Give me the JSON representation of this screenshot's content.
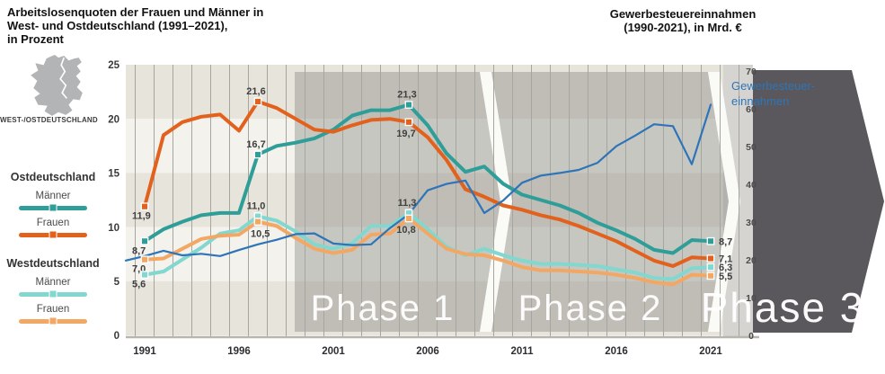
{
  "header": {
    "left_title": "Arbeitslosenquoten der Frauen und Männer in\nWest- und Ostdeutschland (1991–2021),\nin Prozent",
    "right_title": "Gewerbesteuereinnahmen\n(1990-2021), in Mrd. €"
  },
  "sidebar": {
    "map_caption": "WEST-/OSTDEUTSCHLAND",
    "groups": [
      {
        "heading": "Ostdeutschland",
        "items": [
          {
            "label": "Männer",
            "color": "#2f9e99"
          },
          {
            "label": "Frauen",
            "color": "#e2611c"
          }
        ]
      },
      {
        "heading": "Westdeutschland",
        "items": [
          {
            "label": "Männer",
            "color": "#82d7cf"
          },
          {
            "label": "Frauen",
            "color": "#f3a765"
          }
        ]
      }
    ]
  },
  "chart_data": {
    "type": "line",
    "title": "Arbeitslosenquoten der Frauen und Männer in West- und Ostdeutschland (1991–2021), in Prozent / Gewerbesteuereinnahmen (1990-2021), in Mrd. €",
    "years": [
      1991,
      1992,
      1993,
      1994,
      1995,
      1996,
      1997,
      1998,
      1999,
      2000,
      2001,
      2002,
      2003,
      2004,
      2005,
      2006,
      2007,
      2008,
      2009,
      2010,
      2011,
      2012,
      2013,
      2014,
      2015,
      2016,
      2017,
      2018,
      2019,
      2020,
      2021
    ],
    "x_ticks": [
      1991,
      1996,
      2001,
      2006,
      2011,
      2016,
      2021
    ],
    "left_axis": {
      "label": "in Prozent",
      "ticks": [
        0,
        5,
        10,
        15,
        20,
        25
      ],
      "range": [
        0,
        25
      ]
    },
    "right_axis": {
      "label": "in Mrd. €",
      "ticks": [
        0,
        10,
        20,
        30,
        40,
        50,
        60,
        70
      ],
      "range": [
        0,
        70
      ]
    },
    "grid": "vertical-yearly",
    "legend_position": "left",
    "series": [
      {
        "key": "ost_maenner",
        "name": "Ostdeutschland Männer",
        "color": "#2f9e99",
        "axis": "left",
        "year_start": 1991,
        "values": [
          8.7,
          9.8,
          10.5,
          11.1,
          11.3,
          11.3,
          16.7,
          17.5,
          17.8,
          18.2,
          19.0,
          20.3,
          20.8,
          20.8,
          21.3,
          19.4,
          16.8,
          15.1,
          15.6,
          14.0,
          13.0,
          12.5,
          12.0,
          11.3,
          10.4,
          9.7,
          8.9,
          7.9,
          7.6,
          8.8,
          8.7
        ]
      },
      {
        "key": "ost_frauen",
        "name": "Ostdeutschland Frauen",
        "color": "#e2611c",
        "axis": "left",
        "year_start": 1991,
        "values": [
          11.9,
          18.5,
          19.7,
          20.2,
          20.4,
          18.9,
          21.6,
          21.0,
          20.0,
          19.0,
          18.8,
          19.4,
          19.9,
          20.0,
          19.7,
          18.3,
          16.2,
          13.5,
          12.8,
          12.0,
          11.6,
          11.1,
          10.7,
          10.1,
          9.4,
          8.7,
          7.8,
          6.9,
          6.4,
          7.2,
          7.1
        ]
      },
      {
        "key": "west_maenner",
        "name": "Westdeutschland Männer",
        "color": "#82d7cf",
        "axis": "left",
        "year_start": 1991,
        "values": [
          5.6,
          5.9,
          7.0,
          8.1,
          9.4,
          9.7,
          11.0,
          10.6,
          9.6,
          8.4,
          8.0,
          8.5,
          10.1,
          10.1,
          11.3,
          9.8,
          8.2,
          7.4,
          8.0,
          7.4,
          6.9,
          6.6,
          6.6,
          6.5,
          6.4,
          6.1,
          5.8,
          5.3,
          5.2,
          6.2,
          6.3
        ]
      },
      {
        "key": "west_frauen",
        "name": "Westdeutschland Frauen",
        "color": "#f3a765",
        "axis": "left",
        "year_start": 1991,
        "values": [
          7.0,
          7.1,
          8.0,
          8.9,
          9.2,
          9.3,
          10.5,
          10.1,
          9.0,
          8.0,
          7.6,
          7.9,
          9.3,
          9.4,
          10.8,
          9.4,
          8.0,
          7.5,
          7.4,
          6.9,
          6.3,
          6.0,
          6.0,
          5.9,
          5.8,
          5.6,
          5.3,
          4.9,
          4.7,
          5.6,
          5.5
        ]
      },
      {
        "key": "gewerbesteuer",
        "name": "Gewerbesteuereinnahmen",
        "color": "#2e74b8",
        "axis": "right",
        "year_start": 1990,
        "values": [
          19.8,
          21.0,
          22.4,
          21.2,
          21.6,
          21.0,
          22.6,
          24.1,
          25.3,
          26.8,
          27.0,
          24.3,
          23.9,
          24.1,
          28.4,
          32.1,
          38.4,
          40.1,
          41.0,
          32.4,
          35.7,
          40.4,
          42.3,
          43.0,
          43.8,
          45.7,
          50.1,
          52.9,
          55.9,
          55.4,
          45.3,
          61.1
        ]
      }
    ],
    "callouts": [
      {
        "series": "ost_frauen",
        "year": 1991,
        "text": "11,9",
        "pos": "below"
      },
      {
        "series": "ost_maenner",
        "year": 1991,
        "text": "8,7",
        "pos": "below"
      },
      {
        "series": "west_frauen",
        "year": 1991,
        "text": "7,0",
        "pos": "below"
      },
      {
        "series": "west_maenner",
        "year": 1991,
        "text": "5,6",
        "pos": "below"
      },
      {
        "series": "ost_frauen",
        "year": 1997,
        "text": "21,6",
        "pos": "above"
      },
      {
        "series": "ost_maenner",
        "year": 1997,
        "text": "16,7",
        "pos": "above"
      },
      {
        "series": "west_maenner",
        "year": 1997,
        "text": "11,0",
        "pos": "above"
      },
      {
        "series": "west_frauen",
        "year": 1997,
        "text": "10,5",
        "pos": "below-right"
      },
      {
        "series": "ost_maenner",
        "year": 2005,
        "text": "21,3",
        "pos": "above"
      },
      {
        "series": "ost_frauen",
        "year": 2005,
        "text": "19,7",
        "pos": "below-mid"
      },
      {
        "series": "west_maenner",
        "year": 2005,
        "text": "11,3",
        "pos": "above"
      },
      {
        "series": "west_frauen",
        "year": 2005,
        "text": "10,8",
        "pos": "below-mid"
      },
      {
        "series": "ost_maenner",
        "year": 2021,
        "text": "8,7",
        "pos": "right"
      },
      {
        "series": "ost_frauen",
        "year": 2021,
        "text": "7,1",
        "pos": "right"
      },
      {
        "series": "west_maenner",
        "year": 2021,
        "text": "6,3",
        "pos": "right"
      },
      {
        "series": "west_frauen",
        "year": 2021,
        "text": "5,5",
        "pos": "right"
      }
    ],
    "phases": [
      {
        "label": "Phase 1"
      },
      {
        "label": "Phase 2"
      },
      {
        "label": "Phase 3"
      }
    ],
    "line_label": {
      "text": "Gewerbesteuer-\neinnahmen",
      "color": "#2e74b8"
    },
    "colors": {
      "stripe_dark": "#e7e4db",
      "stripe_light": "#f3f2ed",
      "grid": "#a6a59f",
      "phase_overlay": "rgba(100,98,94,0.30)",
      "phase_gap": "#fafaf6",
      "axis_band": "#d5d4d1",
      "phase3_arrow": "#5a585c",
      "phase_text": "#ffffff"
    }
  }
}
